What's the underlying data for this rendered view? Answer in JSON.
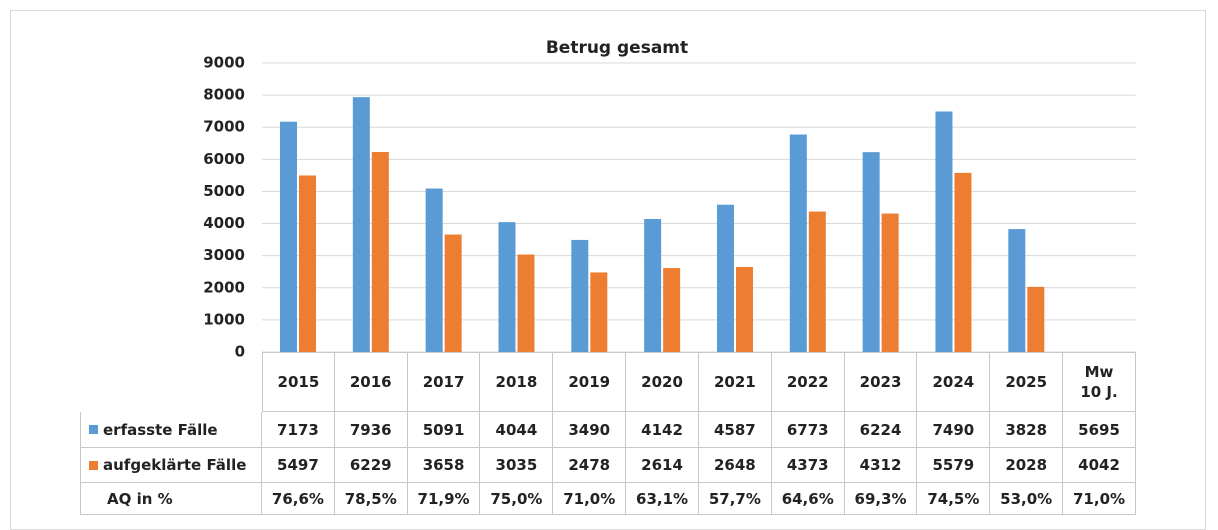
{
  "chart_data": {
    "type": "bar",
    "title": "Betrug gesamt",
    "categories": [
      "2015",
      "2016",
      "2017",
      "2018",
      "2019",
      "2020",
      "2021",
      "2022",
      "2023",
      "2024",
      "2025"
    ],
    "mean_label": "Mw 10 J.",
    "series": [
      {
        "name": "erfasste Fälle",
        "color": "#5b9bd5",
        "values": [
          7173,
          7936,
          5091,
          4044,
          3490,
          4142,
          4587,
          6773,
          6224,
          7490,
          3828
        ],
        "mean": 5695
      },
      {
        "name": "aufgeklärte Fälle",
        "color": "#ed7d31",
        "values": [
          5497,
          6229,
          3658,
          3035,
          2478,
          2614,
          2648,
          4373,
          4312,
          5579,
          2028
        ],
        "mean": 4042
      }
    ],
    "ratio": {
      "name": "AQ in %",
      "values": [
        76.6,
        78.5,
        71.9,
        75.0,
        71.0,
        63.1,
        57.7,
        64.6,
        69.3,
        74.5,
        53.0
      ],
      "value_labels": [
        "76,6%",
        "78,5%",
        "71,9%",
        "75,0%",
        "71,0%",
        "63,1%",
        "57,7%",
        "64,6%",
        "69,3%",
        "74,5%",
        "53,0%"
      ],
      "mean": 71.0,
      "mean_label": "71,0%"
    },
    "ylim": [
      0,
      9000
    ],
    "yticks": [
      0,
      1000,
      2000,
      3000,
      4000,
      5000,
      6000,
      7000,
      8000,
      9000
    ],
    "grid": true
  }
}
